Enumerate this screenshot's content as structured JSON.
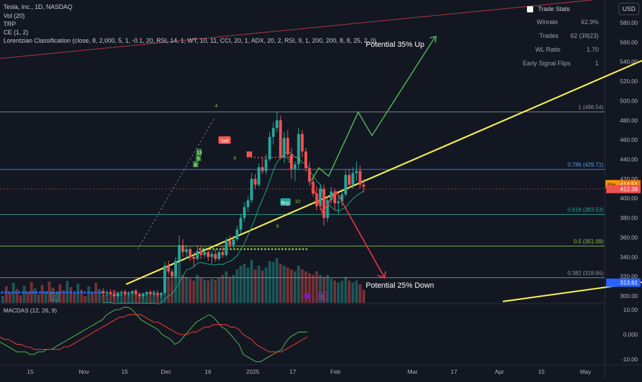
{
  "header": {
    "symbol_line": "Tesla, Inc., 1D, NASDAQ",
    "indicators": [
      "Vol (20)",
      "TRP",
      "CE (1, 2)",
      "Lorentzian Classification (close, 8, 2,000, 5, 1, -0.1, 20, RSI, 14, 1, WT, 10, 11, CCI, 20, 1, ADX, 20, 2, RSI, 9, 1, 200, 200, 8, 8, 25, 2, 0)"
    ]
  },
  "currency_button": "USD",
  "trade_stats": {
    "title": "Trade Stats",
    "rows": [
      {
        "label": "Winrate",
        "value": "62.9%"
      },
      {
        "label": "Trades",
        "value": "62 (39|23)"
      },
      {
        "label": "WL Ratio",
        "value": "1.70"
      },
      {
        "label": "Early Signal Flips",
        "value": "1"
      }
    ]
  },
  "annotations": {
    "up_label": "Potential 35% Up",
    "down_label": "Potential 25% Down",
    "sell_label": "Sell",
    "buy_label": "Buy",
    "marker_labels": [
      "13",
      "9",
      "8",
      "10",
      "8",
      "2",
      "3",
      "6",
      "4"
    ]
  },
  "macd_label": "MACDAS (12, 26, 9)",
  "colors": {
    "background": "#131722",
    "up": "#26a69a",
    "down": "#ef5350",
    "trendline": "#f5ef4e",
    "up_arrow": "#4caf50",
    "down_arrow": "#f23645",
    "fib_blue": "#5b9cf6",
    "fib_green": "#8bc34a",
    "fib_gray": "#8f939c"
  },
  "chart_data": {
    "type": "candlestick",
    "price_axis": {
      "min": 300,
      "max": 590,
      "ticks": [
        "580.00",
        "560.00",
        "540.00",
        "520.00",
        "500.00",
        "480.00",
        "460.00",
        "440.00",
        "420.00",
        "400.00",
        "380.00",
        "360.00",
        "340.00",
        "320.00",
        "300.00"
      ],
      "badges": [
        {
          "label": "Pre",
          "value": "414.51",
          "price": 414.51,
          "color": "#f57c00"
        },
        {
          "label": "",
          "value": "412.38",
          "price": 412.38,
          "color": "#ef5350"
        },
        {
          "label": "",
          "value": "313.61",
          "price": 313.61,
          "color": "#2962ff"
        }
      ]
    },
    "x_axis": {
      "ticks": [
        "15",
        "Nov",
        "15",
        "Dec",
        "16",
        "2025",
        "17",
        "Feb",
        "Mar",
        "17",
        "Apr",
        "15",
        "May"
      ]
    },
    "fib_levels": [
      {
        "label": "1 (488.54)",
        "price": 488.54
      },
      {
        "label": "0.786 (429.71)",
        "price": 429.71
      },
      {
        "label": "0.618 (383.53)",
        "price": 383.53
      },
      {
        "label": "0.5 (351.09)",
        "price": 351.09
      },
      {
        "label": "0.382 (318.66)",
        "price": 318.66
      }
    ],
    "candles": [
      [
        305,
        308,
        299,
        303
      ],
      [
        303,
        306,
        300,
        304
      ],
      [
        304,
        307,
        301,
        302
      ],
      [
        302,
        305,
        298,
        300
      ],
      [
        300,
        304,
        298,
        303
      ],
      [
        303,
        306,
        300,
        304
      ],
      [
        304,
        306,
        300,
        302
      ],
      [
        302,
        305,
        299,
        303
      ],
      [
        303,
        306,
        301,
        305
      ],
      [
        305,
        307,
        301,
        302
      ],
      [
        302,
        304,
        298,
        300
      ],
      [
        300,
        303,
        297,
        302
      ],
      [
        302,
        305,
        300,
        304
      ],
      [
        304,
        306,
        301,
        302
      ],
      [
        302,
        305,
        300,
        303
      ],
      [
        303,
        306,
        299,
        301
      ],
      [
        301,
        304,
        298,
        303
      ],
      [
        303,
        335,
        302,
        331
      ],
      [
        331,
        336,
        322,
        325
      ],
      [
        325,
        327,
        316,
        320
      ],
      [
        320,
        340,
        318,
        336
      ],
      [
        336,
        362,
        334,
        352
      ],
      [
        352,
        358,
        340,
        345
      ],
      [
        345,
        352,
        338,
        348
      ],
      [
        348,
        350,
        336,
        340
      ],
      [
        340,
        345,
        330,
        338
      ],
      [
        338,
        352,
        336,
        346
      ],
      [
        346,
        352,
        338,
        342
      ],
      [
        342,
        350,
        339,
        345
      ],
      [
        345,
        348,
        336,
        340
      ],
      [
        340,
        346,
        333,
        343
      ],
      [
        343,
        348,
        335,
        338
      ],
      [
        338,
        347,
        336,
        345
      ],
      [
        345,
        352,
        339,
        342
      ],
      [
        342,
        360,
        340,
        357
      ],
      [
        357,
        362,
        349,
        352
      ],
      [
        352,
        362,
        348,
        358
      ],
      [
        358,
        372,
        356,
        368
      ],
      [
        368,
        384,
        364,
        380
      ],
      [
        380,
        396,
        376,
        391
      ],
      [
        391,
        402,
        386,
        398
      ],
      [
        398,
        426,
        395,
        420
      ],
      [
        420,
        425,
        410,
        414
      ],
      [
        414,
        436,
        412,
        432
      ],
      [
        432,
        442,
        425,
        428
      ],
      [
        428,
        445,
        424,
        440
      ],
      [
        440,
        468,
        438,
        463
      ],
      [
        463,
        478,
        455,
        472
      ],
      [
        472,
        489,
        468,
        480
      ],
      [
        480,
        485,
        440,
        442
      ],
      [
        442,
        468,
        436,
        462
      ],
      [
        462,
        470,
        440,
        445
      ],
      [
        445,
        452,
        420,
        430
      ],
      [
        430,
        438,
        418,
        435
      ],
      [
        435,
        472,
        430,
        466
      ],
      [
        466,
        470,
        442,
        448
      ],
      [
        448,
        452,
        427,
        431
      ],
      [
        431,
        437,
        413,
        417
      ],
      [
        417,
        423,
        402,
        405
      ],
      [
        405,
        412,
        388,
        392
      ],
      [
        392,
        415,
        388,
        410
      ],
      [
        410,
        414,
        372,
        380
      ],
      [
        380,
        402,
        376,
        398
      ],
      [
        398,
        412,
        394,
        407
      ],
      [
        407,
        410,
        388,
        395
      ],
      [
        395,
        402,
        384,
        397
      ],
      [
        397,
        407,
        392,
        404
      ],
      [
        404,
        430,
        402,
        424
      ],
      [
        424,
        430,
        410,
        414
      ],
      [
        414,
        432,
        410,
        426
      ],
      [
        426,
        438,
        418,
        428
      ],
      [
        428,
        434,
        410,
        414
      ],
      [
        414,
        420,
        406,
        412
      ]
    ],
    "volume": [
      9,
      11,
      10,
      14,
      12,
      10,
      13,
      11,
      12,
      14,
      9,
      11,
      10,
      12,
      13,
      11,
      10,
      35,
      28,
      24,
      38,
      45,
      30,
      28,
      26,
      24,
      30,
      27,
      25,
      24,
      26,
      25,
      27,
      30,
      34,
      28,
      30,
      36,
      40,
      42,
      38,
      46,
      36,
      40,
      35,
      38,
      45,
      44,
      48,
      42,
      40,
      38,
      36,
      34,
      40,
      36,
      34,
      32,
      30,
      34,
      30,
      28,
      30,
      26,
      24,
      22,
      24,
      28,
      24,
      22,
      24,
      20,
      14
    ],
    "macd_axis": {
      "ticks": [
        "10.00",
        "0.000",
        "-10.00"
      ],
      "min": -12,
      "max": 13
    },
    "macd": [
      -3,
      -4,
      -5,
      -6,
      -7,
      -7,
      -7,
      -8,
      -8,
      -7,
      -7,
      -6,
      -6,
      -5,
      -4,
      -3,
      -2,
      -1,
      0,
      1,
      2,
      3,
      4,
      5,
      6,
      8,
      9,
      10,
      10,
      11,
      11,
      10,
      8,
      6,
      5,
      4,
      3,
      2,
      0,
      -1,
      -2,
      -4,
      -3,
      -1,
      1,
      3,
      5,
      6,
      7,
      8,
      7,
      5,
      3,
      2,
      0,
      -2,
      -4,
      -8,
      -9,
      -10,
      -11,
      -11,
      -10,
      -9,
      -8,
      -7,
      -6,
      -3,
      -1,
      0,
      1,
      1,
      1
    ],
    "signal": [
      -1,
      -2,
      -2,
      -3,
      -4,
      -4,
      -5,
      -5,
      -6,
      -6,
      -6,
      -6,
      -6,
      -6,
      -6,
      -5,
      -5,
      -4,
      -3,
      -2,
      -1,
      0,
      1,
      2,
      3,
      4,
      5,
      6,
      7,
      7,
      8,
      8,
      8,
      8,
      7,
      6,
      5,
      5,
      4,
      3,
      2,
      1,
      0,
      0,
      0,
      1,
      1,
      2,
      3,
      3,
      4,
      4,
      4,
      4,
      3,
      3,
      2,
      0,
      -1,
      -2,
      -4,
      -5,
      -6,
      -7,
      -7,
      -7,
      -7,
      -6,
      -5,
      -4,
      -3,
      -2,
      -1
    ]
  }
}
